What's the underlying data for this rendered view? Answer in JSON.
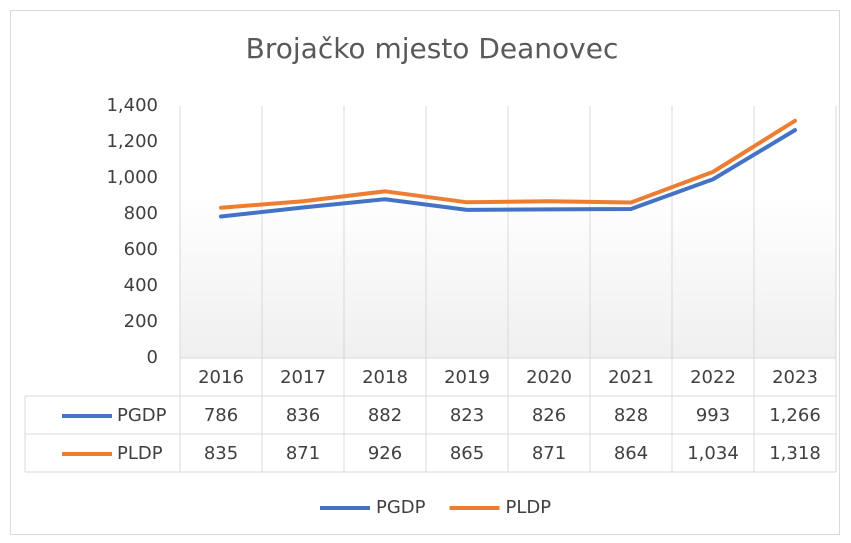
{
  "chart_data": {
    "type": "line",
    "title": "Brojačko mjesto Deanovec",
    "categories": [
      "2016",
      "2017",
      "2018",
      "2019",
      "2020",
      "2021",
      "2022",
      "2023"
    ],
    "series": [
      {
        "name": "PGDP",
        "color": "#4472c4",
        "values": [
          786,
          836,
          882,
          823,
          826,
          828,
          993,
          1266
        ],
        "value_labels": [
          "786",
          "836",
          "882",
          "823",
          "826",
          "828",
          "993",
          "1,266"
        ]
      },
      {
        "name": "PLDP",
        "color": "#ed7d31",
        "values": [
          835,
          871,
          926,
          865,
          871,
          864,
          1034,
          1318
        ],
        "value_labels": [
          "835",
          "871",
          "926",
          "865",
          "871",
          "864",
          "1,034",
          "1,318"
        ]
      }
    ],
    "ylim": [
      0,
      1400
    ],
    "yticks": [
      0,
      200,
      400,
      600,
      800,
      {
        "value": 1000,
        "label": "1,000"
      },
      {
        "value": 1200,
        "label": "1,200"
      },
      {
        "value": 1400,
        "label": "1,400"
      }
    ],
    "legend": "bottom"
  }
}
